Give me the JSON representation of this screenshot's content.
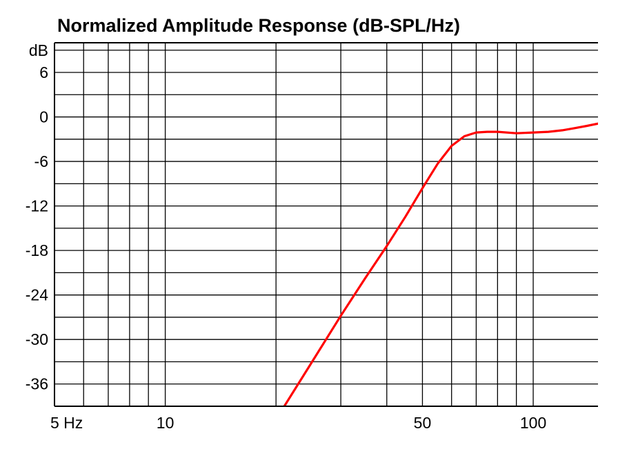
{
  "chart_data": {
    "type": "line",
    "title": "Normalized Amplitude Response (dB-SPL/Hz)",
    "xscale": "log",
    "xlim": [
      5,
      150
    ],
    "ylim": [
      -39,
      10
    ],
    "grid": true,
    "y_unit_label": "dB",
    "x_ticks": [
      {
        "value": 5,
        "label": "5 Hz"
      },
      {
        "value": 10,
        "label": "10"
      },
      {
        "value": 50,
        "label": "50"
      },
      {
        "value": 100,
        "label": "100"
      }
    ],
    "y_ticks": [
      {
        "value": 6,
        "label": "6"
      },
      {
        "value": 0,
        "label": "0"
      },
      {
        "value": -6,
        "label": "-6"
      },
      {
        "value": -12,
        "label": "-12"
      },
      {
        "value": -18,
        "label": "-18"
      },
      {
        "value": -24,
        "label": "-24"
      },
      {
        "value": -30,
        "label": "-30"
      },
      {
        "value": -36,
        "label": "-36"
      }
    ],
    "x_gridlines": [
      6,
      7,
      8,
      9,
      10,
      20,
      30,
      40,
      50,
      60,
      70,
      80,
      90,
      100
    ],
    "y_gridlines": [
      9,
      6,
      3,
      0,
      -3,
      -6,
      -9,
      -12,
      -15,
      -18,
      -21,
      -24,
      -27,
      -30,
      -33,
      -36,
      -39
    ],
    "series": [
      {
        "color": "#ff0000",
        "x": [
          21,
          25,
          30,
          35,
          40,
          45,
          50,
          55,
          60,
          65,
          70,
          75,
          80,
          90,
          100,
          110,
          120,
          130,
          140,
          150
        ],
        "y": [
          -39.1,
          -33.1,
          -26.8,
          -21.7,
          -17.4,
          -13.4,
          -9.6,
          -6.3,
          -3.9,
          -2.6,
          -2.1,
          -2.0,
          -2.0,
          -2.2,
          -2.1,
          -2.0,
          -1.8,
          -1.5,
          -1.2,
          -0.9
        ]
      }
    ]
  }
}
